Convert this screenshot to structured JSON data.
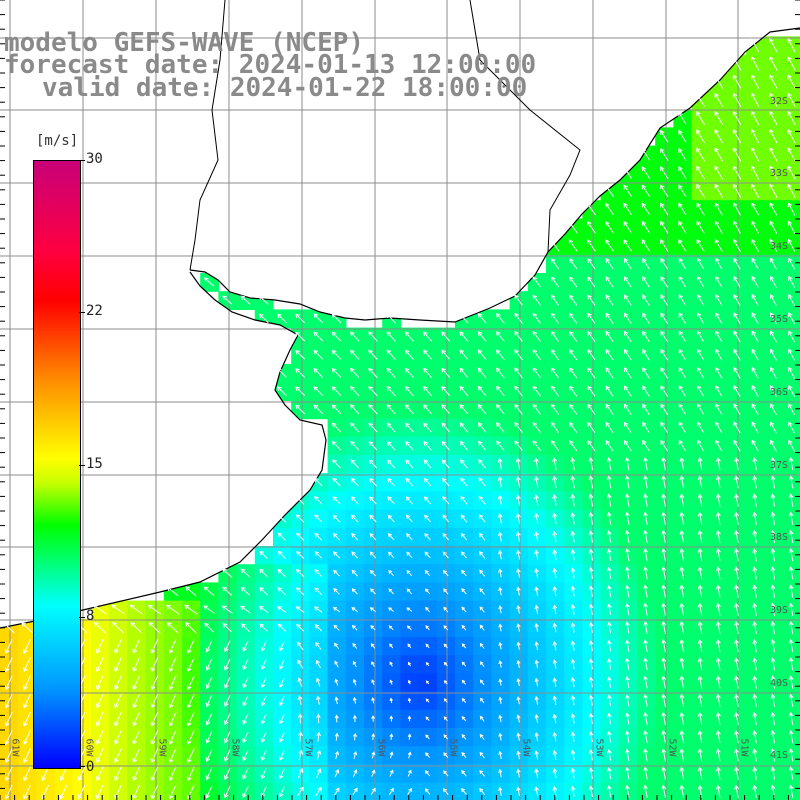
{
  "title": {
    "model": "modelo GEFS-WAVE (NCEP)",
    "forecast": "forecast date: 2024-01-13 12:00:00",
    "valid": "valid date: 2024-01-22 18:00:00"
  },
  "colorbar": {
    "unit": "[m/s]",
    "ticks": [
      "30",
      "22",
      "15",
      "8",
      "0"
    ],
    "min": 0,
    "max": 30
  },
  "lat_labels": [
    "32S",
    "33S",
    "34S",
    "35S",
    "36S",
    "37S",
    "38S",
    "39S",
    "40S",
    "41S"
  ],
  "lon_labels": [
    "61W",
    "60W",
    "59W",
    "58W",
    "57W",
    "56W",
    "55W",
    "54W",
    "53W",
    "52W",
    "51W"
  ],
  "colors": {
    "land": "#ffffff",
    "coast": "#000000",
    "grid": "#8c8c8c",
    "arrow": "#ffffff",
    "title_text": "#8a8a8a"
  }
}
